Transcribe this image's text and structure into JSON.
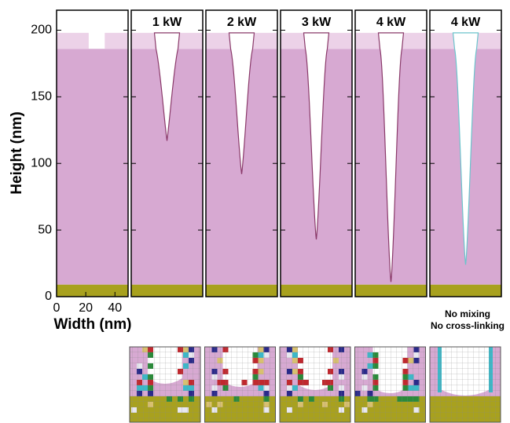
{
  "chart_data": {
    "type": "trench-profile",
    "ylabel": "Height (nm)",
    "xlabel": "Width (nm)",
    "ylim": [
      0,
      215
    ],
    "yticks": [
      0,
      50,
      100,
      150,
      200
    ],
    "xlim": [
      0,
      49
    ],
    "xticks": [
      0,
      20,
      40
    ],
    "substrate_top": 9,
    "resist_top": 186,
    "mask_top": 198,
    "mask_gap": [
      22,
      33
    ],
    "resist_color": "#d7a9d2",
    "mask_color": "#ecd2e8",
    "substrate_color": "#a8a11e",
    "panels": [
      {
        "label": "1 kW",
        "depth": 117
      },
      {
        "label": "2 kW",
        "depth": 92
      },
      {
        "label": "3 kW",
        "depth": 43
      },
      {
        "label": "4 kW",
        "depth": 11
      },
      {
        "label": "4 kW",
        "depth": 24
      }
    ],
    "note": [
      "No mixing",
      "No cross-linking"
    ]
  }
}
